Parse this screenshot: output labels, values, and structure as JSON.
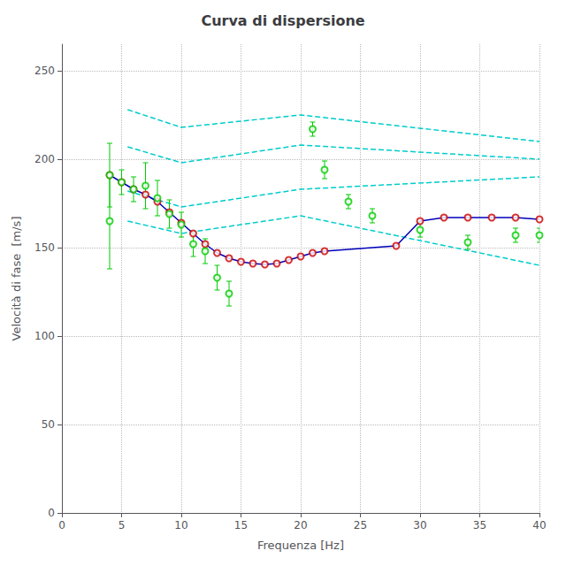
{
  "chart_data": {
    "type": "line",
    "title": "Curva di dispersione",
    "x_label": "Frequenza [Hz]",
    "y_label": "Velocità di fase  [m/s]",
    "xlim": [
      0,
      40
    ],
    "ylim": [
      0,
      265
    ],
    "xticks": [
      0,
      5,
      10,
      15,
      20,
      25,
      30,
      35,
      40
    ],
    "yticks": [
      0,
      50,
      100,
      150,
      200,
      250
    ],
    "grid": true,
    "series": [
      {
        "type": "line",
        "x": [
          5.5,
          10.0,
          20.0,
          40.0
        ],
        "values": [
          228.0,
          218.0,
          225.0,
          210.0
        ],
        "color": "#00cccc",
        "line_style": "dashed",
        "marker": "none"
      },
      {
        "type": "line",
        "x": [
          5.5,
          10.0,
          20.0,
          40.0
        ],
        "values": [
          207.0,
          198.0,
          208.0,
          200.0
        ],
        "color": "#00cccc",
        "line_style": "dashed",
        "marker": "none"
      },
      {
        "type": "line",
        "x": [
          5.5,
          10.0,
          20.0,
          40.0
        ],
        "values": [
          182.0,
          173.0,
          183.0,
          190.0
        ],
        "color": "#00cccc",
        "line_style": "dashed",
        "marker": "none"
      },
      {
        "type": "line",
        "x": [
          5.5,
          10.0,
          20.0,
          40.0
        ],
        "values": [
          165.0,
          158.0,
          168.0,
          140.0
        ],
        "color": "#00cccc",
        "line_style": "dashed",
        "marker": "none"
      },
      {
        "type": "line",
        "x": [
          4.0,
          5.0,
          6.0,
          7.0,
          8.0,
          9.0,
          10.0,
          11.0,
          12.0,
          13.0,
          14.0,
          15.0,
          16.0,
          17.0,
          18.0,
          19.0,
          20.0,
          21.0,
          22.0,
          28.0,
          30.0,
          32.0,
          34.0,
          36.0,
          38.0,
          40.0
        ],
        "values": [
          191.0,
          187.0,
          183.0,
          180.0,
          176.0,
          170.0,
          164.0,
          158.0,
          152.0,
          147.0,
          144.0,
          142.0,
          141.0,
          140.5,
          141.0,
          143.0,
          145.0,
          147.0,
          148.0,
          151.0,
          165.0,
          167.0,
          167.0,
          167.0,
          167.0,
          166.0
        ],
        "color": "#0000bb",
        "line_style": "solid",
        "marker": "none"
      },
      {
        "type": "scatter",
        "x": [
          4.0,
          5.0,
          6.0,
          7.0,
          8.0,
          9.0,
          10.0,
          11.0,
          12.0,
          13.0,
          14.0,
          15.0,
          16.0,
          17.0,
          18.0,
          19.0,
          20.0,
          21.0,
          22.0,
          28.0,
          30.0,
          32.0,
          34.0,
          36.0,
          38.0,
          40.0
        ],
        "values": [
          191.0,
          187.0,
          183.0,
          180.0,
          176.0,
          170.0,
          164.0,
          158.0,
          152.0,
          147.0,
          144.0,
          142.0,
          141.0,
          140.5,
          141.0,
          143.0,
          145.0,
          147.0,
          148.0,
          151.0,
          165.0,
          167.0,
          167.0,
          167.0,
          167.0,
          166.0
        ],
        "color": "#cc0000",
        "marker": "open_circle"
      },
      {
        "type": "scatter",
        "x": [
          4.0,
          5.0,
          6.0,
          7.0,
          8.0,
          9.0,
          10.0,
          11.0,
          12.0,
          13.0,
          14.0,
          21.0,
          22.0,
          24.0,
          26.0,
          30.0,
          34.0,
          38.0,
          40.0
        ],
        "values": [
          191.0,
          187.0,
          183.0,
          185.0,
          178.0,
          169.0,
          163.0,
          152.0,
          148.0,
          133.0,
          124.0,
          217.0,
          194.0,
          176.0,
          168.0,
          160.0,
          153.0,
          157.0,
          157.0
        ],
        "yerr": [
          18.0,
          7.0,
          7.0,
          13.0,
          10.0,
          8.0,
          7.0,
          7.0,
          7.0,
          7.0,
          7.0,
          4.0,
          5.0,
          4.0,
          4.0,
          4.0,
          4.0,
          4.0,
          4.0
        ],
        "color": "#00cc00",
        "marker": "open_circle"
      },
      {
        "type": "scatter",
        "x": [
          4.0
        ],
        "values": [
          165.0
        ],
        "yerr": [
          27.0
        ],
        "color": "#00cc00",
        "marker": "open_circle"
      }
    ]
  }
}
